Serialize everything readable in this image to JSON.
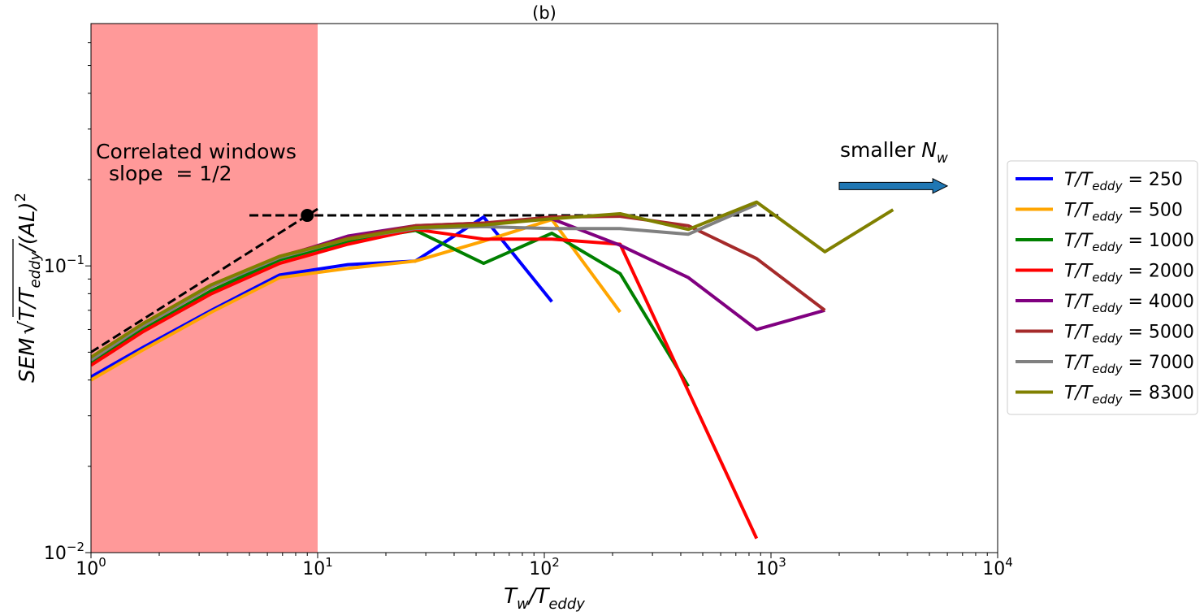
{
  "chart_data": {
    "type": "line",
    "title": "(b)",
    "xlabel": {
      "base": "T",
      "sub1": "w",
      "mid": "/T",
      "sub2": "eddy"
    },
    "ylabel": {
      "a": "SEM",
      "b": "T/T",
      "sub": "eddy",
      "c": "/(AL)",
      "sup": "2"
    },
    "xscale": "log",
    "yscale": "log",
    "xlim": [
      1,
      10000
    ],
    "ylim": [
      0.01,
      0.7
    ],
    "xticks": [
      {
        "value": 1,
        "base": "10",
        "exp": "0"
      },
      {
        "value": 10,
        "base": "10",
        "exp": "1"
      },
      {
        "value": 100,
        "base": "10",
        "exp": "2"
      },
      {
        "value": 1000,
        "base": "10",
        "exp": "3"
      },
      {
        "value": 10000,
        "base": "10",
        "exp": "4"
      }
    ],
    "yticks": [
      {
        "value": 0.01,
        "base": "10",
        "exp": "−2"
      },
      {
        "value": 0.1,
        "base": "10",
        "exp": "−1"
      }
    ],
    "shaded_region": {
      "x": [
        1,
        10
      ],
      "color": "#ff9999"
    },
    "annotations": {
      "correlated_line1": "Correlated windows",
      "correlated_line2": "slope  = 1/2",
      "smaller_text": "smaller ",
      "smaller_var": "N",
      "smaller_sub": "w",
      "arrow_from_x": 2000,
      "arrow_to_x": 6000,
      "arrow_y": 0.19,
      "arrow_color": "#1f77b4"
    },
    "reference_lines": [
      {
        "name": "slope-half",
        "x": [
          1,
          10
        ],
        "y": [
          0.05,
          0.158
        ]
      },
      {
        "name": "plateau",
        "x": [
          5,
          1100
        ],
        "y": [
          0.15,
          0.15
        ]
      }
    ],
    "marker": {
      "x": 9,
      "y": 0.15
    },
    "legend_position": "center-right",
    "series": [
      {
        "name": "T/T_eddy = 250",
        "label_var": "T/T",
        "label_sub": "eddy",
        "label_val": " = 250",
        "color": "#0000ff",
        "x": [
          1,
          1.7,
          3.4,
          6.8,
          13.6,
          27,
          54,
          108
        ],
        "y": [
          0.041,
          0.052,
          0.07,
          0.093,
          0.101,
          0.104,
          0.148,
          0.075
        ]
      },
      {
        "name": "T/T_eddy = 500",
        "label_var": "T/T",
        "label_sub": "eddy",
        "label_val": " = 500",
        "color": "#ffa500",
        "x": [
          1,
          1.7,
          3.4,
          6.8,
          13.6,
          27,
          54,
          108,
          216
        ],
        "y": [
          0.04,
          0.051,
          0.069,
          0.091,
          0.098,
          0.104,
          0.122,
          0.145,
          0.069
        ]
      },
      {
        "name": "T/T_eddy = 1000",
        "label_var": "T/T",
        "label_sub": "eddy",
        "label_val": " = 1000",
        "color": "#008000",
        "x": [
          1,
          1.7,
          3.4,
          6.8,
          13.6,
          27,
          54,
          108,
          216,
          432
        ],
        "y": [
          0.046,
          0.06,
          0.082,
          0.105,
          0.122,
          0.133,
          0.102,
          0.13,
          0.094,
          0.038
        ]
      },
      {
        "name": "T/T_eddy = 2000",
        "label_var": "T/T",
        "label_sub": "eddy",
        "label_val": " = 2000",
        "color": "#ff0000",
        "x": [
          1,
          1.7,
          3.4,
          6.8,
          13.6,
          27,
          54,
          108,
          216,
          864
        ],
        "y": [
          0.045,
          0.059,
          0.08,
          0.102,
          0.119,
          0.134,
          0.124,
          0.124,
          0.119,
          0.0112
        ]
      },
      {
        "name": "T/T_eddy = 4000",
        "label_var": "T/T",
        "label_sub": "eddy",
        "label_val": " = 4000",
        "color": "#800080",
        "x": [
          1,
          1.7,
          3.4,
          6.8,
          13.6,
          27,
          54,
          108,
          216,
          432,
          864,
          1728
        ],
        "y": [
          0.047,
          0.062,
          0.085,
          0.107,
          0.127,
          0.138,
          0.141,
          0.146,
          0.118,
          0.091,
          0.06,
          0.07
        ]
      },
      {
        "name": "T/T_eddy = 5000",
        "label_var": "T/T",
        "label_sub": "eddy",
        "label_val": " = 5000",
        "color": "#a52a2a",
        "x": [
          1,
          1.7,
          3.4,
          6.8,
          13.6,
          27,
          54,
          108,
          216,
          432,
          864,
          1728
        ],
        "y": [
          0.047,
          0.062,
          0.085,
          0.108,
          0.125,
          0.138,
          0.141,
          0.148,
          0.149,
          0.138,
          0.106,
          0.07
        ]
      },
      {
        "name": "T/T_eddy = 7000",
        "label_var": "T/T",
        "label_sub": "eddy",
        "label_val": " = 7000",
        "color": "#808080",
        "x": [
          1,
          1.7,
          3.4,
          6.8,
          13.6,
          27,
          54,
          108,
          216,
          432,
          864
        ],
        "y": [
          0.047,
          0.062,
          0.085,
          0.107,
          0.124,
          0.135,
          0.137,
          0.135,
          0.135,
          0.129,
          0.164
        ]
      },
      {
        "name": "T/T_eddy = 8300",
        "label_var": "T/T",
        "label_sub": "eddy",
        "label_val": " = 8300",
        "color": "#808000",
        "x": [
          1,
          1.7,
          3.4,
          6.8,
          13.6,
          27,
          54,
          108,
          216,
          432,
          864,
          1728,
          3456
        ],
        "y": [
          0.048,
          0.063,
          0.086,
          0.108,
          0.124,
          0.136,
          0.139,
          0.146,
          0.152,
          0.134,
          0.167,
          0.112,
          0.157
        ]
      }
    ]
  }
}
